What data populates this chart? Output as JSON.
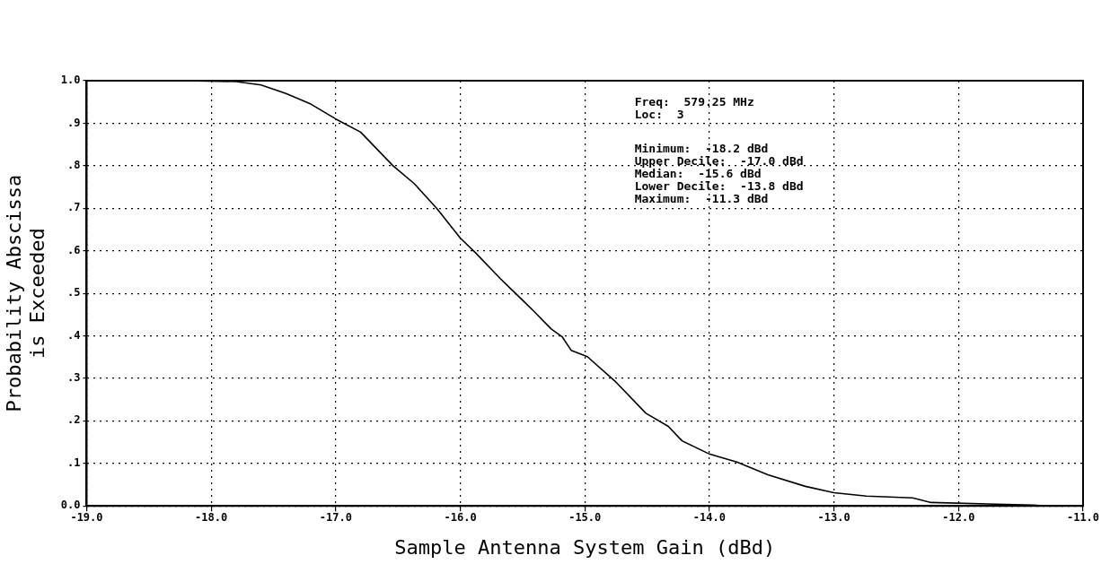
{
  "chart_data": {
    "type": "line",
    "xlabel": "Sample Antenna System Gain (dBd)",
    "ylabel": "Probability Abscissa\nis Exceeded",
    "annotations": [
      "Freq:  579.25 MHz",
      "Loc:  3",
      "Minimum:  -18.2 dBd",
      "Upper Decile:  -17.0 dBd",
      "Median:  -15.6 dBd",
      "Lower Decile:  -13.8 dBd",
      "Maximum:  -11.3 dBd"
    ],
    "series": [
      {
        "color": "#000000",
        "x": [
          -18.2,
          -17.8,
          -17.6,
          -17.4,
          -17.2,
          -17.0,
          -16.8,
          -16.54,
          -16.37,
          -16.19,
          -16.0,
          -15.88,
          -15.68,
          -15.6,
          -15.49,
          -15.41,
          -15.27,
          -15.18,
          -15.11,
          -14.98,
          -14.76,
          -14.51,
          -14.33,
          -14.22,
          -14.0,
          -13.78,
          -13.53,
          -13.23,
          -13.0,
          -12.74,
          -12.37,
          -12.22,
          -11.7,
          -11.4,
          -11.3
        ],
        "values": [
          1.0,
          0.998,
          0.99,
          0.97,
          0.945,
          0.91,
          0.879,
          0.8,
          0.758,
          0.7,
          0.63,
          0.596,
          0.535,
          0.512,
          0.481,
          0.458,
          0.416,
          0.397,
          0.366,
          0.351,
          0.294,
          0.218,
          0.187,
          0.153,
          0.122,
          0.103,
          0.073,
          0.046,
          0.031,
          0.023,
          0.019,
          0.008,
          0.004,
          0.002,
          0.0
        ]
      }
    ],
    "xlim": [
      -19,
      -11
    ],
    "xticks": [
      {
        "value": -19,
        "label": "-19.0"
      },
      {
        "value": -18,
        "label": "-18.0"
      },
      {
        "value": -17,
        "label": "-17.0"
      },
      {
        "value": -16,
        "label": "-16.0"
      },
      {
        "value": -15,
        "label": "-15.0"
      },
      {
        "value": -14,
        "label": "-14.0"
      },
      {
        "value": -13,
        "label": "-13.0"
      },
      {
        "value": -12,
        "label": "-12.0"
      },
      {
        "value": -11,
        "label": "-11.0"
      }
    ],
    "ylim": [
      0,
      1
    ],
    "yticks": [
      {
        "value": 0,
        "label": "0.0"
      },
      {
        "value": 0.1,
        "label": ".1"
      },
      {
        "value": 0.2,
        "label": ".2"
      },
      {
        "value": 0.3,
        "label": ".3"
      },
      {
        "value": 0.4,
        "label": ".4"
      },
      {
        "value": 0.5,
        "label": ".5"
      },
      {
        "value": 0.6,
        "label": ".6"
      },
      {
        "value": 0.7,
        "label": ".7"
      },
      {
        "value": 0.8,
        "label": ".8"
      },
      {
        "value": 0.9,
        "label": ".9"
      },
      {
        "value": 1,
        "label": "1.0"
      }
    ],
    "grid": true,
    "legend": false,
    "marker": "none",
    "line_style": "solid"
  }
}
